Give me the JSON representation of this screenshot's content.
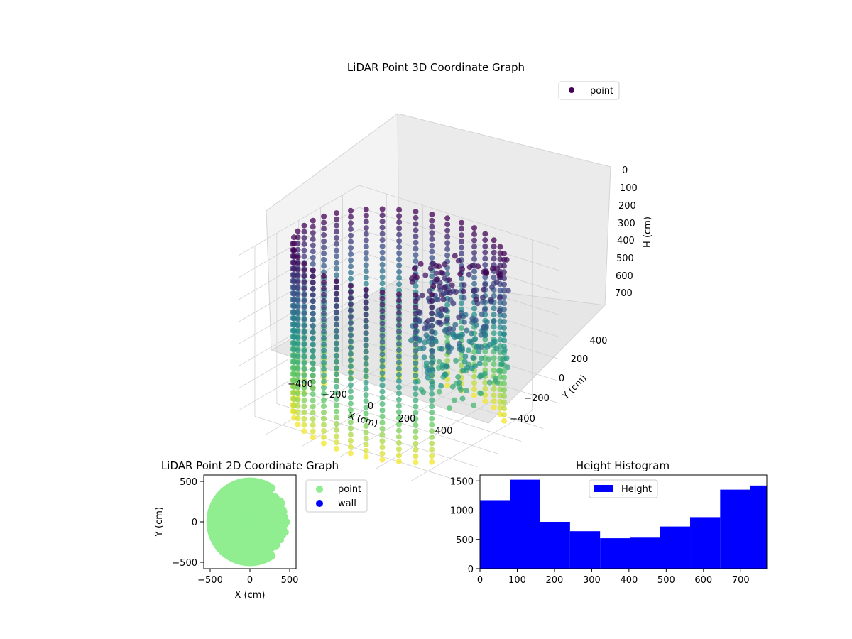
{
  "chart_data": [
    {
      "type": "scatter",
      "projection": "3d",
      "title": "LiDAR Point 3D Coordinate Graph",
      "xlabel": "X (cm)",
      "ylabel": "Y (cm)",
      "zlabel": "H (cm)",
      "x_ticks": [
        "−400",
        "−200",
        "0",
        "200",
        "400"
      ],
      "y_ticks": [
        "−400",
        "−200",
        "0",
        "200",
        "400"
      ],
      "z_ticks": [
        "0",
        "100",
        "200",
        "300",
        "400",
        "500",
        "600",
        "700"
      ],
      "xlim": [
        -550,
        550
      ],
      "ylim": [
        -550,
        550
      ],
      "zlim": [
        0,
        770
      ],
      "z_inverted": true,
      "colormap": "viridis",
      "grid": true,
      "legend": {
        "position": "top-right",
        "entries": [
          {
            "label": "point",
            "color": "#440154"
          }
        ]
      },
      "shape": {
        "description": "cylindrical wall of scan points, radius about 500 cm, height 0-770 cm, open toward +X"
      }
    },
    {
      "type": "scatter",
      "title": "LiDAR Point 2D Coordinate Graph",
      "xlabel": "X (cm)",
      "ylabel": "Y (cm)",
      "x_ticks": [
        "−500",
        "0",
        "500"
      ],
      "y_ticks": [
        "500",
        "0",
        "−500"
      ],
      "xlim": [
        -580,
        580
      ],
      "ylim": [
        -580,
        580
      ],
      "legend": {
        "position": "outside-right",
        "entries": [
          {
            "label": "point",
            "color": "#90ee90"
          },
          {
            "label": "wall",
            "color": "#0000ff"
          }
        ]
      }
    },
    {
      "type": "bar",
      "subtype": "histogram",
      "title": "Height Histogram",
      "x_ticks": [
        "0",
        "100",
        "200",
        "300",
        "400",
        "500",
        "600",
        "700"
      ],
      "y_ticks": [
        "0",
        "500",
        "1000",
        "1500"
      ],
      "bin_edges": [
        0,
        80.6,
        161.2,
        241.8,
        322.4,
        403,
        483.6,
        564.2,
        644.8,
        725.4,
        770
      ],
      "values": [
        1170,
        1520,
        800,
        640,
        520,
        530,
        720,
        880,
        1350,
        1420
      ],
      "xlim": [
        0,
        770
      ],
      "ylim": [
        0,
        1600
      ],
      "color": "#0000ff",
      "legend": {
        "position": "top-center",
        "entries": [
          {
            "label": "Height",
            "color": "#0000ff"
          }
        ]
      }
    }
  ]
}
